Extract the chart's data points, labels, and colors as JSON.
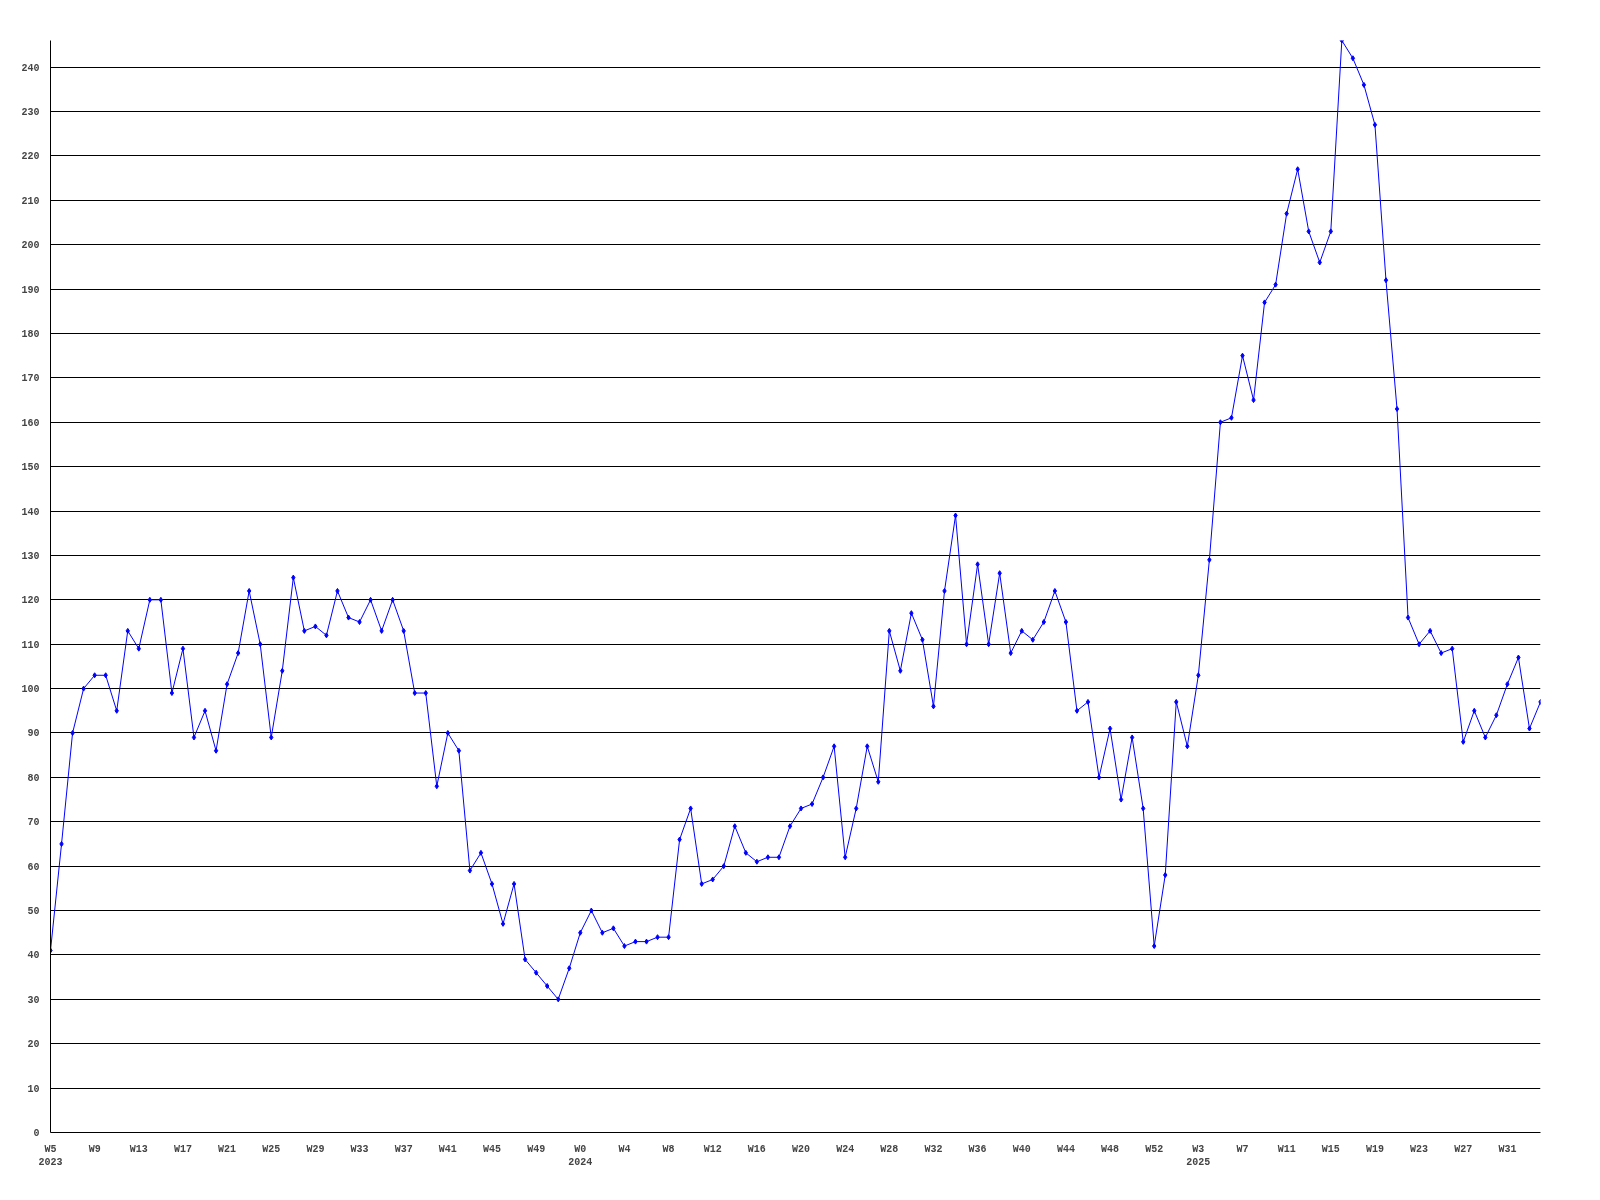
{
  "chart_data": {
    "type": "line",
    "categories": [
      "W5\n2023",
      null,
      null,
      null,
      "W9",
      null,
      null,
      null,
      "W13",
      null,
      null,
      null,
      "W17",
      null,
      null,
      null,
      "W21",
      null,
      null,
      null,
      "W25",
      null,
      null,
      null,
      "W29",
      null,
      null,
      null,
      "W33",
      null,
      null,
      null,
      "W37",
      null,
      null,
      null,
      "W41",
      null,
      null,
      null,
      "W45",
      null,
      null,
      null,
      "W49",
      null,
      null,
      null,
      "W0\n2024",
      null,
      null,
      null,
      "W4",
      null,
      null,
      null,
      "W8",
      null,
      null,
      null,
      "W12",
      null,
      null,
      null,
      "W16",
      null,
      null,
      null,
      "W20",
      null,
      null,
      null,
      "W24",
      null,
      null,
      null,
      "W28",
      null,
      null,
      null,
      "W32",
      null,
      null,
      null,
      "W36",
      null,
      null,
      null,
      "W40",
      null,
      null,
      null,
      "W44",
      null,
      null,
      null,
      "W48",
      null,
      null,
      null,
      "W52",
      null,
      null,
      null,
      "W3\n2025",
      null,
      null,
      null,
      "W7",
      null,
      null,
      null,
      "W11",
      null,
      null,
      null,
      "W15",
      null,
      null,
      null,
      "W19",
      null,
      null,
      null,
      "W23",
      null,
      null,
      null,
      "W27",
      null,
      null,
      null,
      "W31",
      null,
      null,
      null
    ],
    "series": [
      {
        "color": "#0000ff",
        "values": [
          41,
          65,
          90,
          100,
          103,
          103,
          95,
          113,
          109,
          120,
          120,
          99,
          109,
          89,
          95,
          86,
          101,
          108,
          122,
          110,
          89,
          104,
          125,
          113,
          114,
          112,
          122,
          116,
          115,
          120,
          113,
          120,
          113,
          99,
          99,
          78,
          90,
          86,
          59,
          63,
          56,
          47,
          56,
          39,
          36,
          33,
          30,
          37,
          45,
          50,
          45,
          46,
          42,
          43,
          43,
          44,
          44,
          66,
          73,
          56,
          57,
          60,
          69,
          63,
          61,
          62,
          62,
          69,
          73,
          74,
          80,
          87,
          62,
          73,
          87,
          79,
          113,
          104,
          117,
          111,
          96,
          122,
          139,
          110,
          128,
          110,
          126,
          108,
          113,
          111,
          115,
          122,
          115,
          95,
          97,
          80,
          91,
          75,
          89,
          73,
          42,
          58,
          97,
          87,
          103,
          129,
          160,
          161,
          175,
          165,
          187,
          191,
          207,
          217,
          203,
          196,
          203,
          246,
          242,
          236,
          227,
          192,
          163,
          116,
          110,
          113,
          108,
          109,
          88,
          95,
          89,
          94,
          101,
          107,
          91,
          97
        ]
      }
    ],
    "ylim": [
      0,
      246
    ],
    "yticks": [
      0,
      10,
      20,
      30,
      40,
      50,
      60,
      70,
      80,
      90,
      100,
      110,
      120,
      130,
      140,
      150,
      160,
      170,
      180,
      190,
      200,
      210,
      220,
      230,
      240
    ],
    "grid": "y",
    "marker": "diamond",
    "line_style": "solid"
  }
}
